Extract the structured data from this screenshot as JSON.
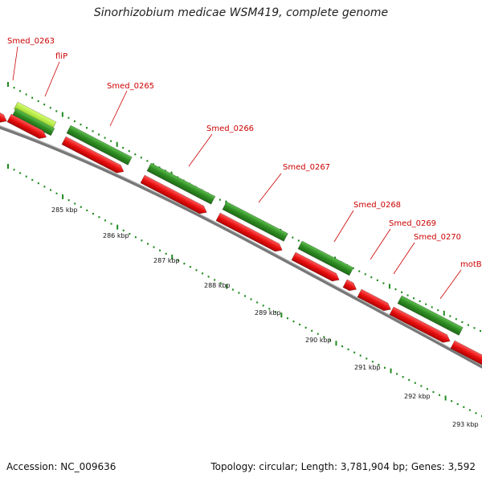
{
  "title": "Sinorhizobium medicae WSM419, complete genome",
  "footer": {
    "accession": "Accession: NC_009636",
    "summary": "Topology: circular; Length: 3,781,904 bp; Genes: 3,592"
  },
  "colors": {
    "forward_gene": "#2e8b22",
    "reverse_gene": "#e81010",
    "highlight_gene": "#a8e030",
    "backbone": "#8a8a8a",
    "tick": "#1f8a1f",
    "label": "#cc0000"
  },
  "gene_labels": [
    "Smed_0263",
    "fliP",
    "Smed_0265",
    "Smed_0266",
    "Smed_0267",
    "Smed_0268",
    "Smed_0269",
    "Smed_0270",
    "motB"
  ],
  "scale_labels": [
    "285 kbp",
    "286 kbp",
    "287 kbp",
    "288 kbp",
    "289 kbp",
    "290 kbp",
    "291 kbp",
    "292 kbp",
    "293 kbp"
  ]
}
